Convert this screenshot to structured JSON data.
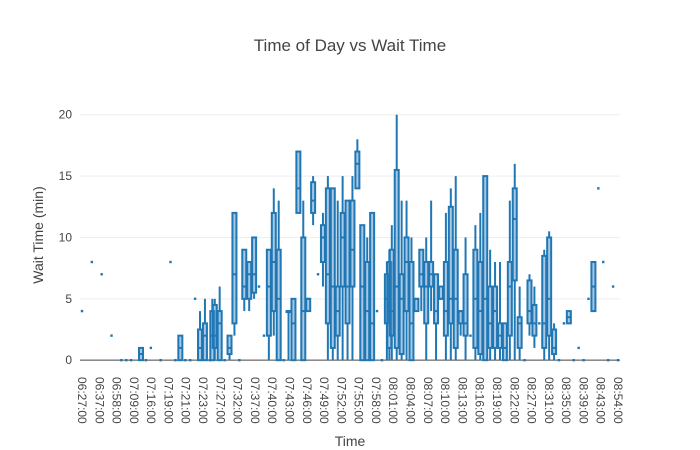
{
  "chart_data": {
    "type": "box",
    "title": "Time of Day vs Wait Time",
    "xlabel": "Time",
    "ylabel": "Wait Time (min)",
    "ylim": [
      -0.8,
      21.2
    ],
    "yticks": [
      0,
      5,
      10,
      15,
      20
    ],
    "grid": true,
    "legend": "none",
    "x_tick_labels": [
      "06:27:00",
      "06:37:00",
      "06:58:00",
      "07:09:00",
      "07:16:00",
      "07:19:00",
      "07:21:00",
      "07:23:00",
      "07:27:00",
      "07:32:00",
      "07:37:00",
      "07:40:00",
      "07:43:00",
      "07:46:00",
      "07:49:00",
      "07:52:00",
      "07:55:00",
      "07:58:00",
      "08:01:00",
      "08:04:00",
      "08:07:00",
      "08:10:00",
      "08:13:00",
      "08:16:00",
      "08:19:00",
      "08:22:00",
      "08:27:00",
      "08:31:00",
      "08:35:00",
      "08:39:00",
      "08:43:00",
      "08:54:00"
    ],
    "x_tick_slots": [
      0,
      2,
      4,
      6,
      8,
      10,
      12,
      14,
      16,
      18,
      20,
      22,
      24,
      26,
      28,
      30,
      32,
      34,
      36,
      38,
      40,
      42,
      44,
      46,
      48,
      50,
      52,
      54,
      56,
      58,
      60,
      62
    ],
    "x_slot_count": 63,
    "categories": [
      "c00",
      "c01",
      "c02",
      "c03",
      "c04",
      "c05",
      "c06",
      "c07",
      "c08",
      "c09",
      "c10",
      "c11",
      "c12",
      "c13",
      "c14",
      "c15",
      "c16",
      "c17",
      "c18",
      "c19",
      "c20",
      "c21",
      "c22",
      "c23",
      "c24",
      "c25",
      "c26",
      "c27",
      "c28",
      "c29",
      "c30",
      "c31",
      "c32",
      "c33",
      "c34",
      "c35",
      "c36",
      "c37",
      "c38",
      "c39",
      "c40",
      "c41",
      "c42",
      "c43",
      "c44",
      "c45",
      "c46",
      "c47",
      "c48",
      "c49",
      "c50",
      "c51",
      "c52",
      "c53",
      "c54",
      "c55",
      "c56",
      "c57",
      "c58",
      "c59",
      "c60",
      "c61",
      "c62",
      "c63",
      "c64",
      "c65",
      "c66",
      "c67",
      "c68",
      "c69",
      "c70",
      "c71",
      "c72",
      "c73",
      "c74",
      "c75",
      "c76",
      "c77",
      "c78",
      "c79",
      "c80",
      "c81",
      "c82",
      "c83",
      "c84",
      "c85",
      "c86",
      "c87",
      "c88",
      "c89",
      "c90",
      "c91",
      "c92",
      "c93",
      "c94",
      "c95",
      "c96",
      "c97",
      "c98",
      "c99",
      "c100",
      "c101",
      "c102",
      "c103",
      "c104",
      "c105",
      "c106",
      "c107",
      "c108",
      "c109",
      "c110",
      "c111",
      "c112",
      "c113",
      "c114",
      "c115",
      "c116",
      "c117",
      "c118",
      "c119",
      "c120",
      "c121",
      "c122",
      "c123",
      "c124",
      "c125",
      "c126",
      "c127",
      "c128",
      "c129",
      "c130",
      "c131",
      "c132",
      "c133",
      "c134",
      "c135",
      "c136",
      "c137",
      "c138",
      "c139",
      "c140",
      "c141",
      "c142",
      "c143",
      "c144",
      "c145",
      "c146",
      "c147",
      "c148",
      "c149",
      "c150",
      "c151",
      "c152",
      "c153",
      "c154",
      "c155",
      "c156",
      "c157",
      "c158",
      "c159",
      "c160",
      "c161",
      "c162",
      "c163",
      "c164",
      "c165",
      "c166",
      "c167",
      "c168",
      "c169",
      "c170",
      "c171",
      "c172",
      "c173",
      "c174",
      "c175",
      "c176",
      "c177",
      "c178",
      "c179",
      "c180",
      "c181",
      "c182",
      "c183",
      "c184"
    ],
    "boxes": [
      [
        0.0,
        4,
        4,
        4,
        4,
        4
      ],
      [
        2.0,
        8,
        8,
        8,
        8,
        8
      ],
      [
        4.0,
        7,
        7,
        7,
        7,
        7
      ],
      [
        6.0,
        2,
        2,
        2,
        2,
        2
      ],
      [
        8.0,
        0,
        0,
        0,
        0,
        0
      ],
      [
        9.0,
        0,
        0,
        0,
        0,
        0
      ],
      [
        10.0,
        0,
        0,
        0,
        0,
        0
      ],
      [
        12.0,
        0,
        0,
        0.5,
        1,
        1
      ],
      [
        13.0,
        0,
        0,
        0,
        0,
        0
      ],
      [
        14.0,
        1,
        1,
        1,
        1,
        1
      ],
      [
        16.0,
        0,
        0,
        0,
        0,
        0
      ],
      [
        18.0,
        8,
        8,
        8,
        8,
        8
      ],
      [
        19.0,
        0,
        0,
        0,
        0,
        0
      ],
      [
        20.0,
        0,
        0,
        1,
        2,
        2
      ],
      [
        21.0,
        0,
        0,
        0,
        0,
        0
      ],
      [
        22.0,
        0,
        0,
        0,
        0,
        0
      ],
      [
        23.0,
        5,
        5,
        5,
        5,
        5
      ],
      [
        24.0,
        0,
        0,
        1,
        2.5,
        4
      ],
      [
        25.0,
        0,
        0,
        2,
        3,
        5
      ],
      [
        26.0,
        0,
        0,
        0,
        0,
        0
      ],
      [
        26.5,
        0,
        0,
        2,
        4,
        5
      ],
      [
        27.0,
        0,
        1,
        2,
        4.5,
        5
      ],
      [
        28.0,
        0,
        0,
        3,
        4,
        6
      ],
      [
        29.0,
        0,
        0,
        0,
        0,
        0
      ],
      [
        30.0,
        0,
        0.5,
        1,
        2,
        2
      ],
      [
        31.0,
        2,
        3,
        7,
        12,
        12
      ],
      [
        32.0,
        0,
        0,
        0,
        0,
        0
      ],
      [
        33.0,
        4,
        5,
        6,
        9,
        9
      ],
      [
        34.0,
        4,
        5,
        7,
        8,
        8
      ],
      [
        35.0,
        5,
        5.5,
        7,
        10,
        10
      ],
      [
        36.0,
        6,
        6,
        6,
        6,
        6
      ],
      [
        37.0,
        2,
        2,
        2,
        2,
        2
      ],
      [
        38.0,
        0,
        2,
        6,
        9,
        9
      ],
      [
        39.0,
        2,
        4,
        8,
        12,
        14
      ],
      [
        40.0,
        0,
        0,
        5,
        9,
        13
      ],
      [
        41.0,
        0,
        0,
        0,
        0,
        0
      ],
      [
        42.0,
        0,
        4,
        4,
        4,
        4
      ],
      [
        43.0,
        0,
        0,
        3,
        5,
        5
      ],
      [
        44.0,
        12,
        12,
        14,
        17,
        17
      ],
      [
        45.0,
        0,
        0,
        4,
        10,
        13
      ],
      [
        46.0,
        4,
        4,
        5,
        5,
        5
      ],
      [
        47.0,
        11,
        12,
        13,
        14.5,
        15
      ],
      [
        48.0,
        7,
        7,
        7,
        7,
        7
      ],
      [
        49.0,
        6,
        8,
        10,
        11,
        12
      ],
      [
        50.0,
        0,
        3,
        7,
        14,
        15
      ],
      [
        51.0,
        0,
        1,
        6,
        14,
        14
      ],
      [
        52.0,
        0,
        2,
        4,
        6,
        13
      ],
      [
        53.0,
        0,
        6,
        10,
        12,
        15
      ],
      [
        54.0,
        0,
        3,
        6,
        13,
        13
      ],
      [
        55.0,
        0,
        6,
        9,
        13,
        15
      ],
      [
        56.0,
        14,
        14,
        16,
        17,
        18
      ],
      [
        57.0,
        0,
        0,
        6,
        11,
        11
      ],
      [
        58.0,
        0,
        0,
        4,
        8,
        10
      ],
      [
        59.0,
        0,
        0,
        3,
        12,
        12
      ],
      [
        60.0,
        4,
        4,
        4,
        4,
        4
      ],
      [
        61.0,
        0,
        0,
        0,
        0,
        0
      ],
      [
        62.0,
        0,
        3,
        5,
        7,
        8
      ],
      [
        62.5,
        0,
        1,
        4,
        8,
        9
      ],
      [
        63.0,
        0,
        2,
        4,
        9,
        11
      ],
      [
        64.0,
        0,
        1,
        6,
        15.5,
        20
      ],
      [
        65.0,
        0,
        0.5,
        5,
        7,
        13
      ],
      [
        66.0,
        0,
        4,
        8,
        10,
        13
      ],
      [
        67.0,
        0,
        0,
        3,
        8,
        10
      ],
      [
        68.0,
        4,
        4,
        5,
        5,
        5
      ],
      [
        69.0,
        4,
        6,
        7,
        9,
        9
      ],
      [
        70.0,
        0,
        3,
        6,
        8,
        10
      ],
      [
        71.0,
        4,
        6,
        7,
        8,
        13
      ],
      [
        72.0,
        0,
        3,
        4,
        7,
        7
      ],
      [
        73.0,
        5,
        5,
        5,
        6,
        6
      ],
      [
        74.0,
        0,
        2,
        4,
        8,
        12
      ],
      [
        75.0,
        0,
        3,
        5,
        12.5,
        14
      ],
      [
        76.0,
        0,
        1,
        5,
        9,
        15
      ],
      [
        77.0,
        2,
        3,
        4,
        4,
        4
      ],
      [
        78.0,
        0,
        2,
        3,
        7,
        10
      ],
      [
        79.0,
        2,
        2,
        2,
        2,
        2
      ],
      [
        80.0,
        0,
        1,
        5,
        9,
        11
      ],
      [
        81.0,
        0,
        0.5,
        4,
        8,
        12
      ],
      [
        82.0,
        0,
        0,
        5,
        15,
        15
      ],
      [
        83.0,
        0,
        1,
        3,
        6,
        9
      ],
      [
        84.0,
        0,
        1,
        4,
        6,
        8
      ],
      [
        85.0,
        0,
        1,
        2,
        3,
        8
      ],
      [
        86.0,
        0,
        0,
        1,
        3,
        3
      ],
      [
        87.0,
        0,
        2,
        6,
        8,
        13
      ],
      [
        88.0,
        0,
        6.5,
        11.5,
        14,
        16
      ],
      [
        89.0,
        0,
        1,
        3,
        3.5,
        6
      ],
      [
        90.0,
        0,
        0,
        0,
        0,
        0
      ],
      [
        91.0,
        2,
        3,
        4,
        6.5,
        7
      ],
      [
        92.0,
        1,
        2,
        3,
        4.5,
        6
      ],
      [
        93.0,
        3,
        3,
        3,
        3,
        3
      ],
      [
        94.0,
        0,
        1,
        3,
        8.5,
        9
      ],
      [
        95.0,
        0,
        2,
        5,
        10,
        10.5
      ],
      [
        96.0,
        0,
        0.5,
        1,
        2.5,
        3
      ],
      [
        97.0,
        0,
        0,
        0,
        0,
        0
      ],
      [
        98.0,
        3,
        3,
        3,
        3,
        3
      ],
      [
        99.0,
        3,
        3,
        3.5,
        4,
        4
      ],
      [
        100.0,
        0,
        0,
        0,
        0,
        0
      ],
      [
        101.0,
        1,
        1,
        1,
        1,
        1
      ],
      [
        102.0,
        0,
        0,
        0,
        0,
        0
      ],
      [
        103.0,
        5,
        5,
        5,
        5,
        5
      ],
      [
        104.0,
        4,
        4,
        6,
        8,
        8
      ],
      [
        105.0,
        14,
        14,
        14,
        14,
        14
      ],
      [
        106.0,
        8,
        8,
        8,
        8,
        8
      ],
      [
        107.0,
        0,
        0,
        0,
        0,
        0
      ],
      [
        108.0,
        6,
        6,
        6,
        6,
        6
      ],
      [
        109.0,
        0,
        0,
        0,
        0,
        0
      ]
    ]
  }
}
